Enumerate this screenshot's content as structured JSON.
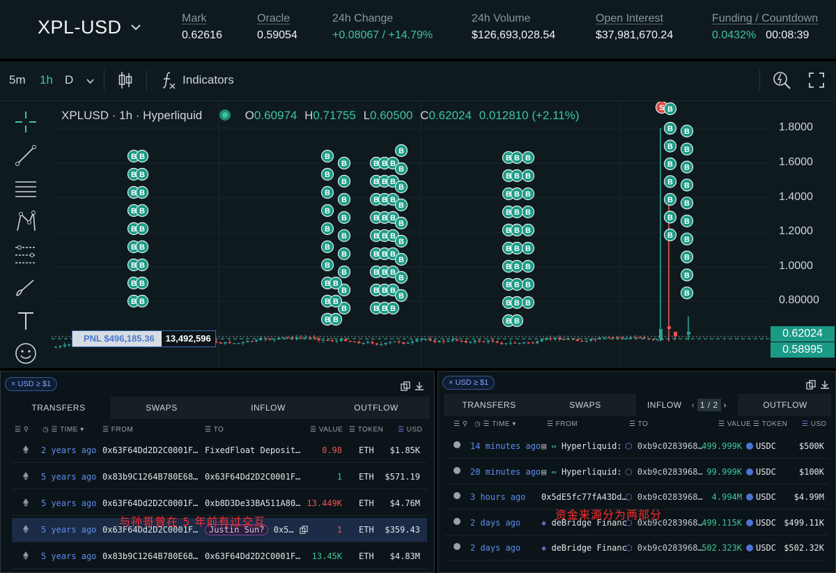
{
  "header": {
    "symbol": "XPL-USD",
    "stats": [
      {
        "label": "Mark",
        "value": "0.62616",
        "underline": true
      },
      {
        "label": "Oracle",
        "value": "0.59054",
        "underline": true
      },
      {
        "label": "24h Change",
        "value": "+0.08067 / +14.79%",
        "underline": false,
        "color": "green"
      },
      {
        "label": "24h Volume",
        "value": "$126,693,028.54",
        "underline": false
      },
      {
        "label": "Open Interest",
        "value": "$37,981,670.24",
        "underline": true
      },
      {
        "label": "Funding / Countdown",
        "value": "0.0432%",
        "value2": "00:08:39",
        "underline": true
      }
    ]
  },
  "toolbar": {
    "tf_5m": "5m",
    "tf_1h": "1h",
    "tf_d": "D",
    "indicators": "Indicators"
  },
  "legend": {
    "title": "XPLUSD · 1h · Hyperliquid",
    "o_label": "O",
    "o": "0.60974",
    "h_label": "H",
    "h": "0.71755",
    "l_label": "L",
    "l": "0.60500",
    "c_label": "C",
    "c": "0.62024",
    "change": "0.012810 (+2.11%)"
  },
  "chart_data": {
    "type": "candlestick",
    "y_ticks": [
      "1.8000",
      "1.6000",
      "1.4000",
      "1.2000",
      "1.0000",
      "0.80000"
    ],
    "price_tags": [
      "0.62024",
      "0.58995"
    ],
    "pnl_label": "PNL $496,185.36",
    "position_size": "13,492,596",
    "marker_buy": "B",
    "marker_sell": "S"
  },
  "left": {
    "chip": "USD ≥ $1",
    "tabs": [
      "TRANSFERS",
      "SWAPS",
      "INFLOW",
      "OUTFLOW"
    ],
    "cols": {
      "time": "TIME",
      "from": "FROM",
      "to": "TO",
      "value": "VALUE",
      "token": "TOKEN",
      "usd": "USD"
    },
    "rows": [
      {
        "time": "2 years ago",
        "from": "0x63F64Dd2D2C0001F…",
        "to": "FixedFloat Deposit…",
        "value": "0.98",
        "vcolor": "red",
        "token": "ETH",
        "usd": "$1.85K"
      },
      {
        "time": "5 years ago",
        "from": "0x83b9C1264B780E68…",
        "to": "0x63F64Dd2D2C0001F…",
        "value": "1",
        "vcolor": "green",
        "token": "ETH",
        "usd": "$571.19"
      },
      {
        "time": "5 years ago",
        "from": "0x63F64Dd2D2C0001F…",
        "to": "0xb8D3De33BA511A80…",
        "value": "13.449K",
        "vcolor": "red",
        "token": "ETH",
        "usd": "$4.76M"
      },
      {
        "time": "5 years ago",
        "from": "0x63F64Dd2D2C0001F…",
        "to_badge": "Justin Sun?",
        "to": "0x5…",
        "value": "1",
        "vcolor": "red",
        "token": "ETH",
        "usd": "$359.43"
      },
      {
        "time": "5 years ago",
        "from": "0x83b9C1264B780E68…",
        "to": "0x63F64Dd2D2C0001F…",
        "value": "13.45K",
        "vcolor": "green",
        "token": "ETH",
        "usd": "$4.83M"
      }
    ],
    "annotation": "与孙哥曾在 5 年前有过交互"
  },
  "right": {
    "chip": "USD ≥ $1",
    "tabs": [
      "TRANSFERS",
      "SWAPS",
      "INFLOW",
      "OUTFLOW"
    ],
    "pager": "1 / 2",
    "cols": {
      "time": "TIME",
      "from": "FROM",
      "to": "TO",
      "value": "VALUE",
      "token": "TOKEN",
      "usd": "USD"
    },
    "rows": [
      {
        "time": "14 minutes ago",
        "from": "Hyperliquid:",
        "to": "0xb9c0283968…",
        "value": "499.999K",
        "token": "USDC",
        "usd": "$500K"
      },
      {
        "time": "20 minutes ago",
        "from": "Hyperliquid:",
        "to": "0xb9c0283968…",
        "value": "99.999K",
        "token": "USDC",
        "usd": "$100K"
      },
      {
        "time": "3 hours ago",
        "from": "0x5dE5fc77fA43Dd…",
        "to": "0xb9c0283968…",
        "value": "4.994M",
        "token": "USDC",
        "usd": "$4.99M"
      },
      {
        "time": "2 days ago",
        "from": "deBridge Financ",
        "to": "0xb9c0283968…",
        "value": "499.115K",
        "token": "USDC",
        "usd": "$499.11K"
      },
      {
        "time": "2 days ago",
        "from": "deBridge Financ",
        "to": "0xb9c0283968…",
        "value": "502.323K",
        "token": "USDC",
        "usd": "$502.32K"
      }
    ],
    "annotation": "资金来源分为两部分"
  }
}
